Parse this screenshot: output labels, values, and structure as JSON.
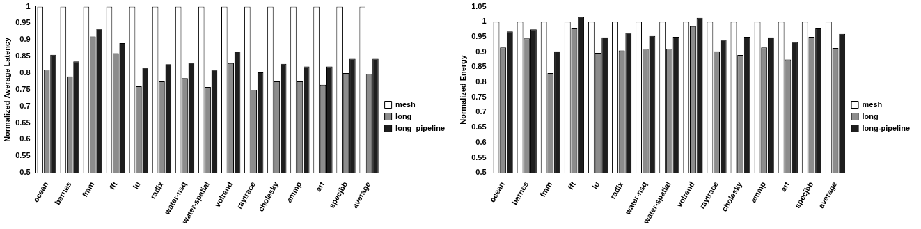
{
  "chart_data": [
    {
      "type": "bar",
      "y_label": "Normalized Average Latency",
      "categories": [
        "ocean",
        "barnes",
        "fmm",
        "fft",
        "lu",
        "radix",
        "water-nsq",
        "water-spatial",
        "volrend",
        "raytrace",
        "cholesky",
        "ammp",
        "art",
        "specjbb",
        "average"
      ],
      "series": [
        {
          "name": "mesh",
          "color": "#ffffff",
          "values": [
            1,
            1,
            1,
            1,
            1,
            1,
            1,
            1,
            1,
            1,
            1,
            1,
            1,
            1,
            1
          ]
        },
        {
          "name": "long",
          "color": "#8c8c8c",
          "values": [
            0.81,
            0.79,
            0.91,
            0.86,
            0.76,
            0.775,
            0.785,
            0.758,
            0.83,
            0.75,
            0.775,
            0.775,
            0.765,
            0.8,
            0.798
          ]
        },
        {
          "name": "long_pipeline",
          "color": "#1e1e1e",
          "values": [
            0.855,
            0.835,
            0.933,
            0.89,
            0.815,
            0.827,
            0.83,
            0.81,
            0.865,
            0.802,
            0.828,
            0.82,
            0.82,
            0.843,
            0.843
          ]
        }
      ],
      "ylim": [
        0.5,
        1
      ],
      "yticks": [
        0.5,
        0.55,
        0.6,
        0.65,
        0.7,
        0.75,
        0.8,
        0.85,
        0.9,
        0.95,
        1
      ],
      "grid": false,
      "legend": "right"
    },
    {
      "type": "bar",
      "y_label": "Normalized Energy",
      "categories": [
        "ocean",
        "barnes",
        "fmm",
        "fft",
        "lu",
        "radix",
        "water-nsq",
        "water-spatial",
        "volrend",
        "raytrace",
        "cholesky",
        "ammp",
        "art",
        "specjbb",
        "average"
      ],
      "series": [
        {
          "name": "mesh",
          "color": "#ffffff",
          "values": [
            1,
            1,
            1,
            1,
            1,
            1,
            1,
            1,
            1,
            1,
            1,
            1,
            1,
            1,
            1
          ]
        },
        {
          "name": "long",
          "color": "#8c8c8c",
          "values": [
            0.915,
            0.945,
            0.83,
            0.98,
            0.897,
            0.905,
            0.91,
            0.91,
            0.985,
            0.902,
            0.89,
            0.915,
            0.875,
            0.95,
            0.913
          ]
        },
        {
          "name": "long-pipeline",
          "color": "#1e1e1e",
          "values": [
            0.968,
            0.975,
            0.902,
            1.015,
            0.948,
            0.963,
            0.953,
            0.95,
            1.013,
            0.94,
            0.95,
            0.948,
            0.933,
            0.98,
            0.96
          ]
        }
      ],
      "ylim": [
        0.5,
        1.05
      ],
      "yticks": [
        0.5,
        0.55,
        0.6,
        0.65,
        0.7,
        0.75,
        0.8,
        0.85,
        0.9,
        0.95,
        1,
        1.05
      ],
      "grid": false,
      "legend": "right"
    }
  ]
}
